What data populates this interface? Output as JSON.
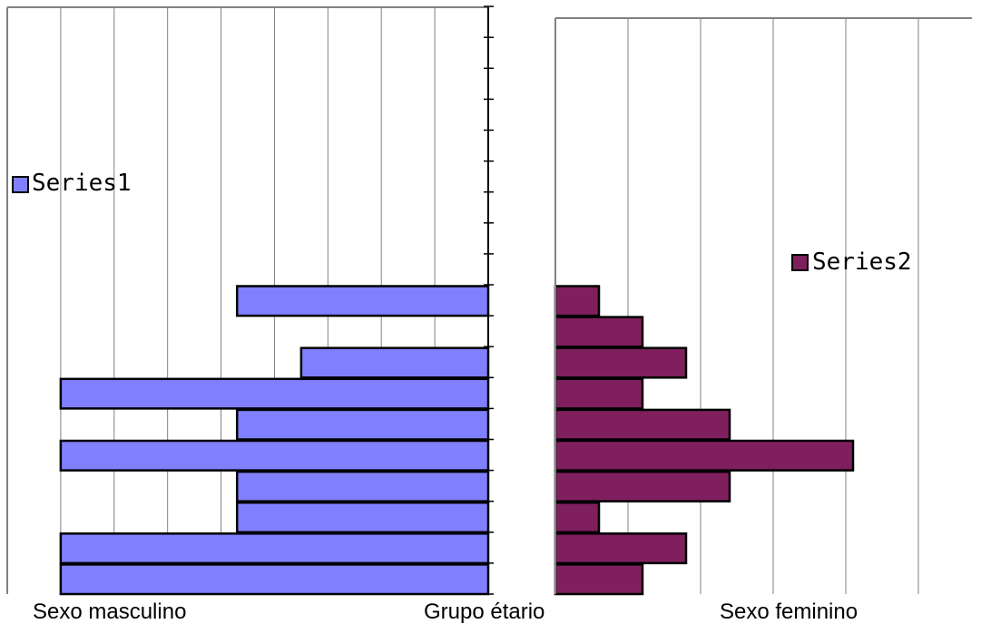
{
  "chart_data": [
    {
      "type": "bar",
      "orientation": "horizontal",
      "direction": "right-to-left",
      "series": [
        {
          "name": "Series1",
          "color": "#8080ff",
          "values": [
            8,
            8,
            4.7,
            4.7,
            8,
            4.7,
            8,
            3.5,
            0,
            4.7,
            0,
            0,
            0,
            0,
            0,
            0,
            0,
            0,
            0
          ]
        }
      ],
      "xlim": [
        0,
        9
      ],
      "grid": true,
      "legend": "left",
      "xlabel": "Sexo masculino"
    },
    {
      "type": "bar",
      "orientation": "horizontal",
      "direction": "left-to-right",
      "series": [
        {
          "name": "Series2",
          "color": "#7f1f5e",
          "values": [
            1.2,
            1.8,
            0.6,
            2.4,
            4.1,
            2.4,
            1.2,
            1.8,
            1.2,
            0.6
          ]
        }
      ],
      "xlim": [
        0,
        5
      ],
      "grid": true,
      "legend": "right",
      "xlabel": "Sexo feminino"
    }
  ],
  "center_label": "Grupo étario"
}
